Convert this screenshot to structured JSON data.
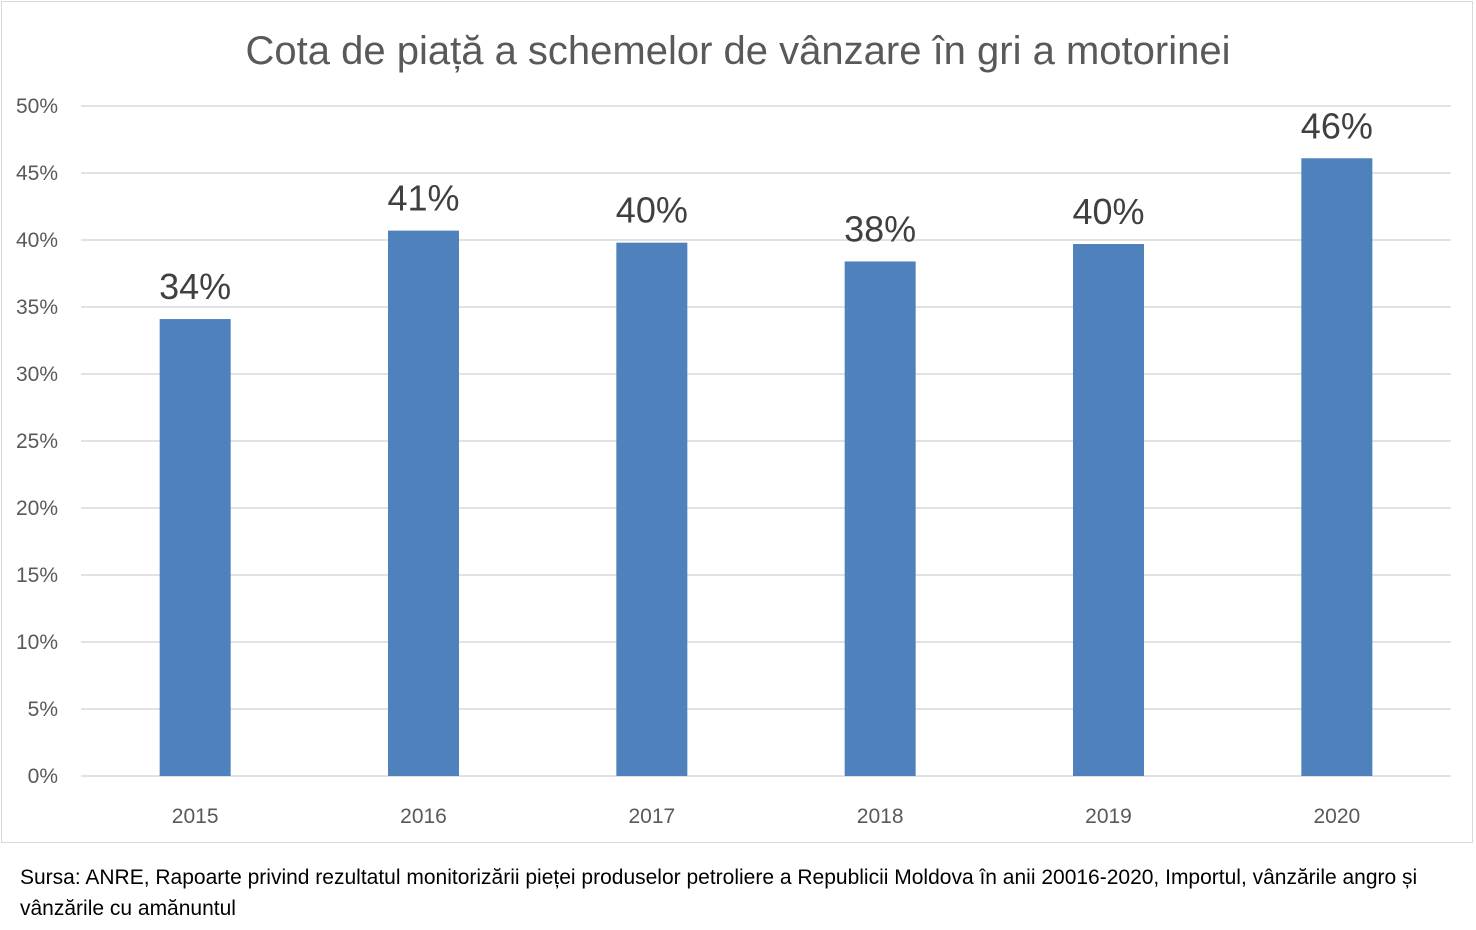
{
  "chart_data": {
    "type": "bar",
    "title": "Cota de piață a schemelor de vânzare în gri a motorinei",
    "categories": [
      "2015",
      "2016",
      "2017",
      "2018",
      "2019",
      "2020"
    ],
    "values": [
      34.1,
      40.7,
      39.8,
      38.4,
      39.7,
      46.1
    ],
    "data_labels": [
      "34%",
      "41%",
      "40%",
      "38%",
      "40%",
      "46%"
    ],
    "y_ticks": [
      0,
      5,
      10,
      15,
      20,
      25,
      30,
      35,
      40,
      45,
      50
    ],
    "y_tick_labels": [
      "0%",
      "5%",
      "10%",
      "15%",
      "20%",
      "25%",
      "30%",
      "35%",
      "40%",
      "45%",
      "50%"
    ],
    "ylim": [
      0,
      50
    ],
    "xlabel": "",
    "ylabel": "",
    "grid": true,
    "legend": "none",
    "colors": {
      "bar": "#4F81BD",
      "grid": "#d9d9d9",
      "text": "#595959",
      "data_label": "#404040"
    }
  },
  "source_note": "Sursa: ANRE, Rapoarte privind rezultatul monitorizării pieței produselor petroliere a Republicii Moldova în anii 20016-2020, Importul, vânzările angro și vânzările cu amănuntul"
}
